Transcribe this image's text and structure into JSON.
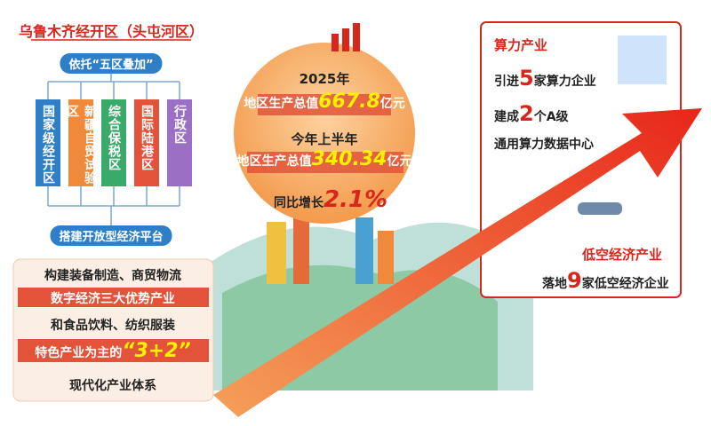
{
  "title": "乌鲁木齐经开区（头屯河区）",
  "basis": "依托“五区叠加”",
  "zones": [
    "国家级经开区",
    "新疆自贸试验区",
    "综合保税区",
    "国际陆港区",
    "行政区"
  ],
  "platform": "搭建开放型经济平台",
  "industry_system": {
    "line1": "构建装备制造、商贸物流",
    "line2": "数字经济三大优势产业",
    "line3": "和食品饮料、纺织服装",
    "line4_prefix": "特色产业为主的",
    "line4_highlight": "“3+2”",
    "line5": "现代化产业体系"
  },
  "stats": {
    "year": "2025年",
    "gdp_label": "地区生产总值",
    "gdp_value": 667.8,
    "gdp_unit": "亿元",
    "half_year": "今年上半年",
    "half_label": "地区生产总值",
    "half_value": 340.34,
    "half_unit": "亿元",
    "growth_label": "同比增长",
    "growth_value": "2.1%"
  },
  "computing": {
    "title": "算力产业",
    "line1_prefix": "引进",
    "line1_value": 5,
    "line1_suffix": "家算力企业",
    "line2_prefix": "建成",
    "line2_value": 2,
    "line2_suffix": "个A级",
    "line3": "通用算力数据中心"
  },
  "low_altitude": {
    "title": "低空经济产业",
    "prefix": "落地",
    "value": 9,
    "suffix": "家低空经济企业"
  }
}
